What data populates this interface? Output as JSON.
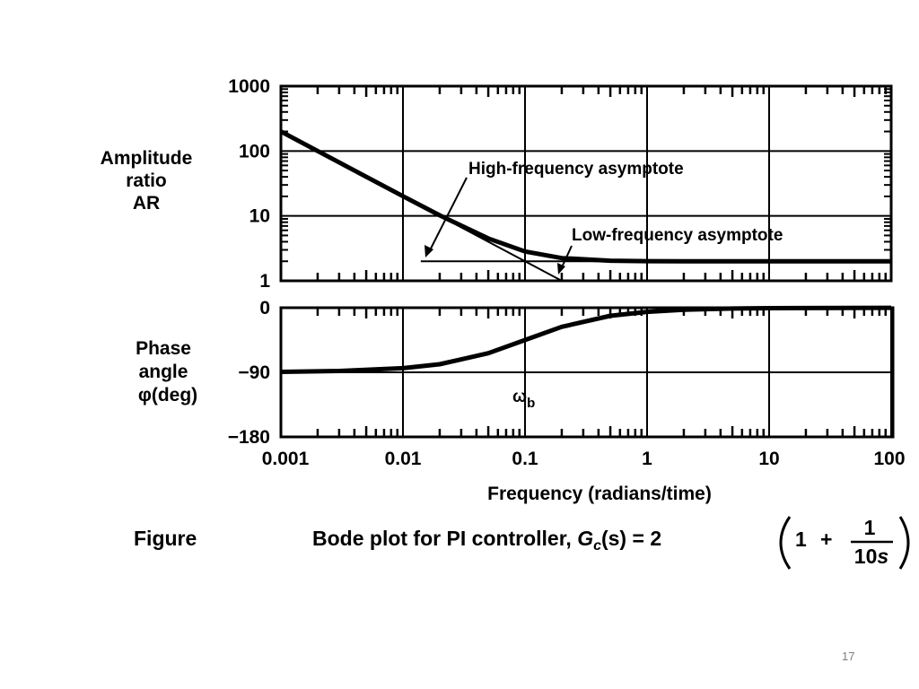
{
  "chart_data": [
    {
      "type": "line",
      "name_in_caption": "Figure",
      "ylabel_lines": [
        "Amplitude",
        "ratio",
        "AR"
      ],
      "x_scale": "log",
      "xlim": [
        0.001,
        100
      ],
      "y_scale": "log",
      "ylim": [
        1,
        1000
      ],
      "y_ticks": [
        {
          "value": 1,
          "label": "1"
        },
        {
          "value": 10,
          "label": "10"
        },
        {
          "value": 100,
          "label": "100"
        },
        {
          "value": 1000,
          "label": "1000"
        }
      ],
      "grid": true,
      "series": [
        {
          "x": [
            0.001,
            0.002,
            0.005,
            0.01,
            0.02,
            0.05,
            0.1,
            0.2,
            0.5,
            1,
            2,
            5,
            10,
            20,
            50,
            100
          ],
          "y": [
            200,
            100,
            40,
            20.1,
            10.2,
            4.5,
            2.83,
            2.24,
            2.04,
            2.01,
            2.0,
            2.0,
            2.0,
            2.0,
            2.0,
            2.0
          ]
        }
      ],
      "asymptotes": [
        {
          "x": [
            0.014,
            1
          ],
          "y": [
            2,
            2
          ]
        },
        {
          "x": [
            0.02,
            0.2
          ],
          "y": [
            10,
            1
          ]
        }
      ],
      "annotations": [
        {
          "text": "High-frequency asymptote"
        },
        {
          "text": "Low-frequency asymptote"
        }
      ]
    },
    {
      "type": "line",
      "ylabel_lines": [
        "Phase",
        "angle",
        "φ(deg)"
      ],
      "x_scale": "log",
      "xlim": [
        0.001,
        100
      ],
      "ylim": [
        -180,
        0
      ],
      "y_ticks": [
        {
          "value": 0,
          "label": "0"
        },
        {
          "value": -90,
          "label": "−90"
        },
        {
          "value": -180,
          "label": "−180"
        }
      ],
      "x_ticks": [
        {
          "value": 0.001,
          "label": "0.001"
        },
        {
          "value": 0.01,
          "label": "0.01"
        },
        {
          "value": 0.1,
          "label": "0.1"
        },
        {
          "value": 1,
          "label": "1"
        },
        {
          "value": 10,
          "label": "10"
        },
        {
          "value": 100,
          "label": "100"
        }
      ],
      "xlabel": "Frequency (radians/time)",
      "grid": true,
      "series": [
        {
          "x": [
            0.001,
            0.003,
            0.01,
            0.02,
            0.05,
            0.1,
            0.2,
            0.5,
            1,
            2,
            5,
            10,
            100
          ],
          "y": [
            -89.4,
            -88.1,
            -84.3,
            -78.7,
            -63.4,
            -45,
            -26.6,
            -11.3,
            -5.7,
            -2.9,
            -1.1,
            -0.6,
            -0.1
          ]
        }
      ],
      "annotations": [
        {
          "text": "ω",
          "subscript": "b",
          "x": 0.1
        }
      ]
    }
  ],
  "caption": {
    "label": "Figure",
    "text": "Bode plot for PI controller, ",
    "gc_symbol": "G",
    "gc_sub": "c",
    "gc_arg": "(s)",
    "eq_rhs": " = 2",
    "one": "1",
    "plus": "+",
    "frac_num": "1",
    "frac_den_num": "10",
    "frac_den_var": "s"
  },
  "slide_number": "17"
}
